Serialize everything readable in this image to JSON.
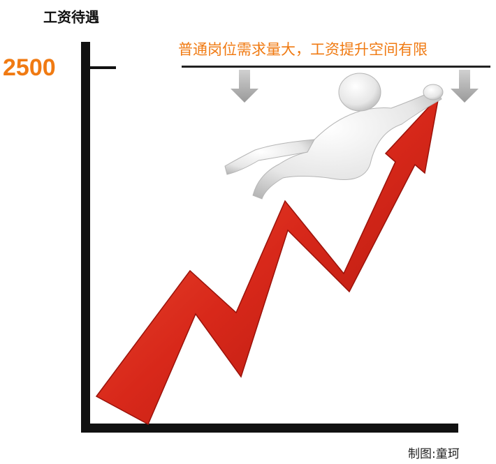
{
  "header": {
    "title": "工资待遇"
  },
  "axis": {
    "tick_label": "2500"
  },
  "annotation": {
    "text": "普通岗位需求量大，工资提升空间有限"
  },
  "footer": {
    "credit": "制图:童珂"
  }
}
